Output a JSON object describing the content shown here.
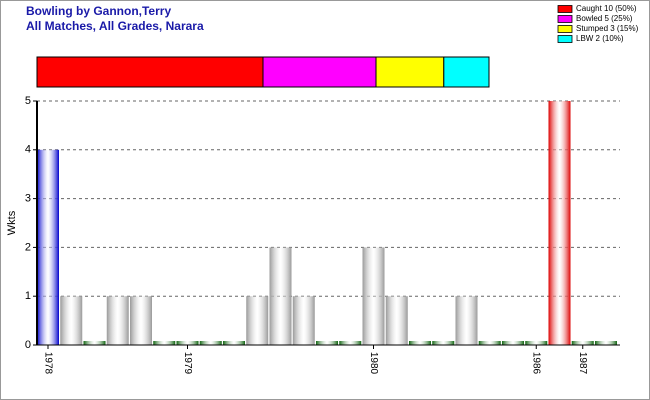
{
  "chart_data": [
    {
      "type": "proportion",
      "series": [
        {
          "name": "Caught 10 (50%)",
          "color": "#ff0000",
          "values": [
            10
          ]
        },
        {
          "name": "Bowled 5 (25%)",
          "color": "#ff00ff",
          "values": [
            5
          ]
        },
        {
          "name": "Stumped 3 (15%)",
          "color": "#ffff00",
          "values": [
            3
          ]
        },
        {
          "name": "LBW 2 (10%)",
          "color": "#00ffff",
          "values": [
            2
          ]
        }
      ]
    },
    {
      "type": "bar",
      "title": "Bowling by Gannon,Terry",
      "subtitle": "All Matches, All Grades, Narara",
      "y_label": "Wkts",
      "categories": [
        "1978",
        null,
        null,
        null,
        null,
        null,
        "1979",
        null,
        null,
        null,
        null,
        null,
        null,
        null,
        "1980",
        null,
        null,
        null,
        null,
        null,
        null,
        "1986",
        null,
        "1987",
        null
      ],
      "values": [
        4,
        1,
        0,
        1,
        1,
        0,
        0,
        0,
        0,
        1,
        2,
        1,
        0,
        0,
        2,
        1,
        0,
        0,
        1,
        0,
        0,
        0,
        5,
        0,
        0
      ],
      "colors": [
        "#0000cc",
        "#999999",
        "#116611",
        "#999999",
        "#999999",
        "#116611",
        "#116611",
        "#116611",
        "#116611",
        "#999999",
        "#999999",
        "#999999",
        "#116611",
        "#116611",
        "#999999",
        "#999999",
        "#116611",
        "#116611",
        "#999999",
        "#116611",
        "#116611",
        "#116611",
        "#dd0000",
        "#116611",
        "#116611"
      ],
      "ylim": [
        0,
        5
      ],
      "yticks": [
        0,
        1,
        2,
        3,
        4,
        5
      ],
      "grid": true
    }
  ]
}
